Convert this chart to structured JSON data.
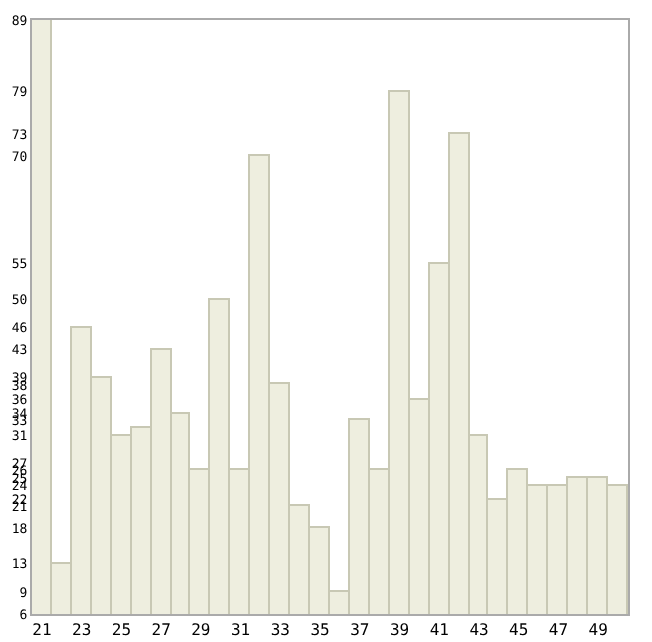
{
  "chart_data": {
    "type": "bar",
    "x": [
      21,
      22,
      23,
      24,
      25,
      26,
      27,
      28,
      29,
      30,
      31,
      32,
      33,
      34,
      35,
      36,
      37,
      38,
      39,
      40,
      41,
      42,
      43,
      44,
      45,
      46,
      47,
      48,
      49,
      50
    ],
    "values": [
      89,
      13,
      46,
      39,
      31,
      32,
      43,
      34,
      26,
      50,
      26,
      70,
      38,
      21,
      18,
      9,
      33,
      26,
      79,
      36,
      55,
      73,
      31,
      22,
      26,
      24,
      24,
      25,
      25,
      24
    ],
    "color": "#eeeedf",
    "xlim": [
      20.5,
      50.5
    ],
    "xticks": [
      21,
      23,
      25,
      27,
      29,
      31,
      33,
      35,
      37,
      39,
      41,
      43,
      45,
      47,
      49
    ],
    "ylim": [
      6,
      89
    ],
    "yticks": [
      6,
      9,
      13,
      18,
      21,
      22,
      24,
      25,
      26,
      27,
      31,
      33,
      34,
      36,
      38,
      39,
      43,
      46,
      50,
      55,
      70,
      73,
      79,
      89
    ],
    "grid": false
  }
}
